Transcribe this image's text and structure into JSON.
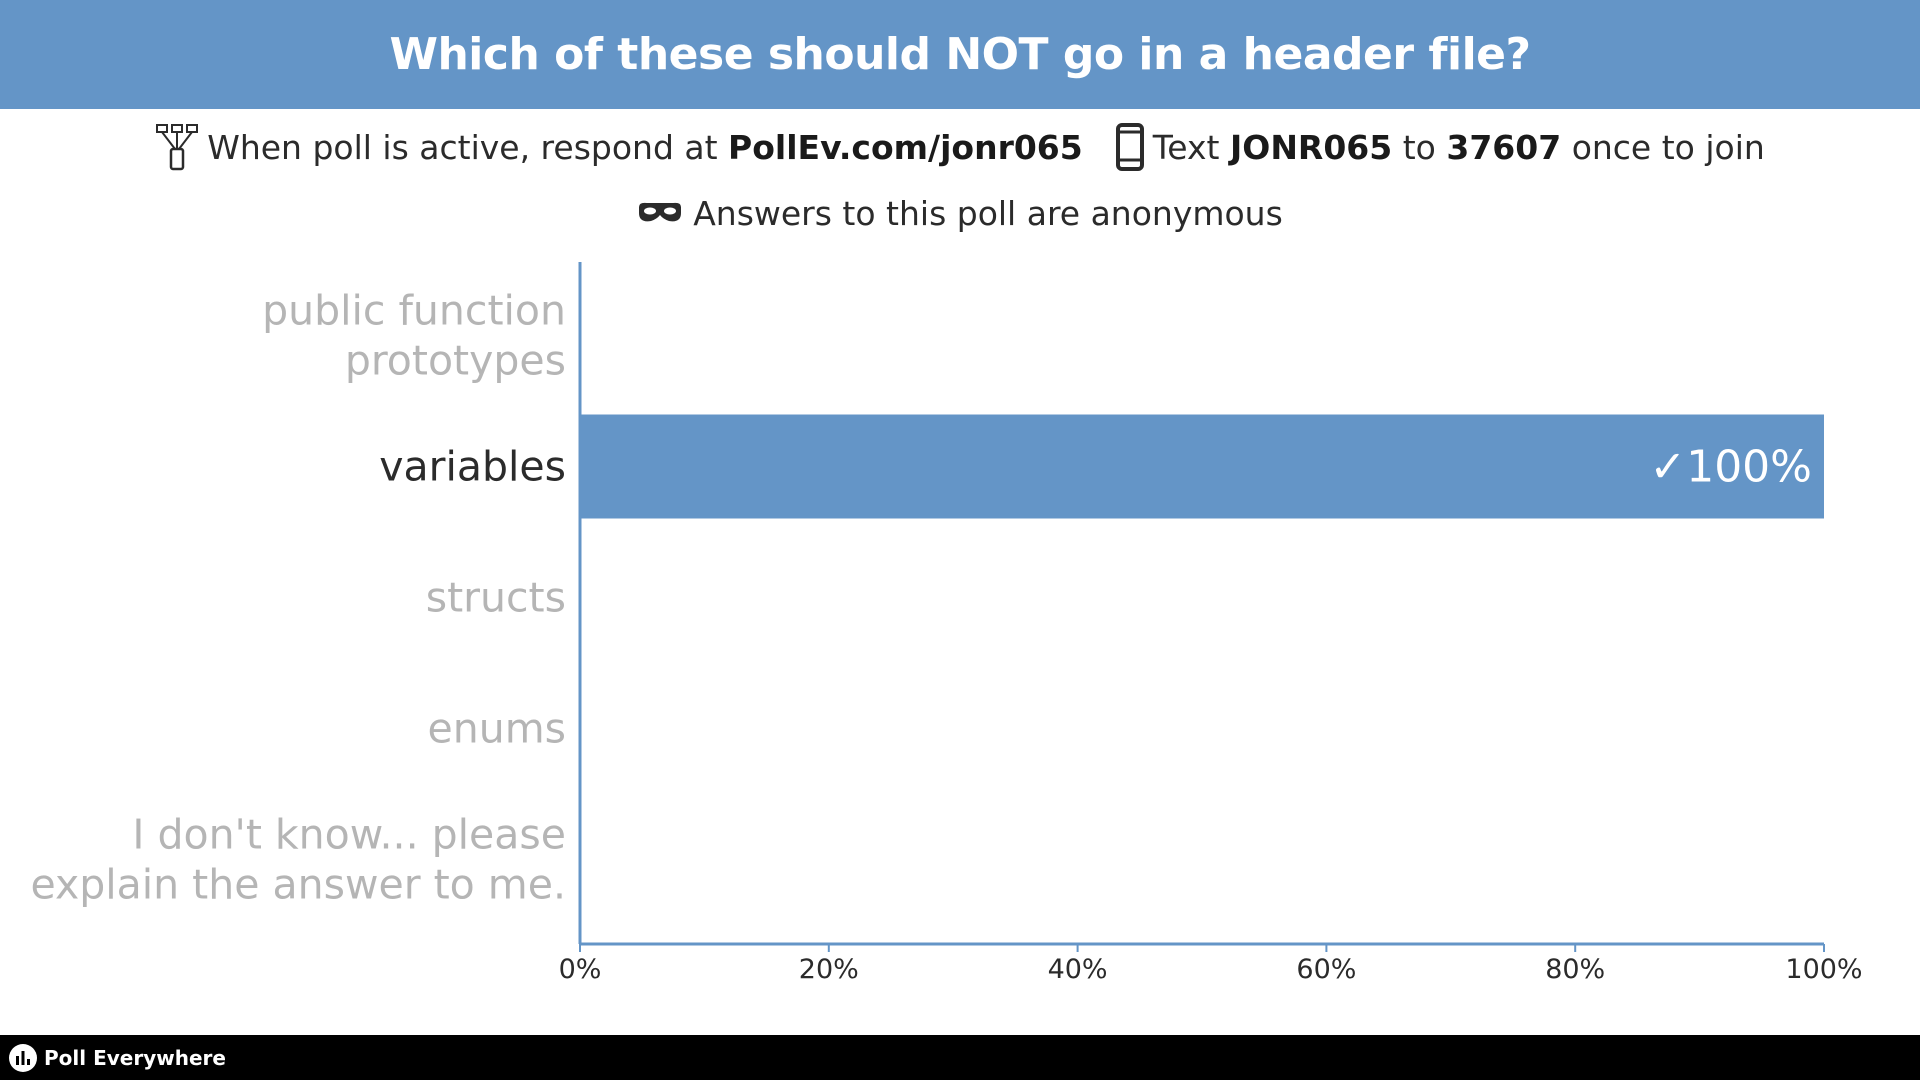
{
  "header": {
    "title": "Which of these should NOT go in a header file?",
    "background": "#6495c7"
  },
  "instructions": {
    "web_prefix": "When poll is active, respond at",
    "web_url": "PollEv.com/jonr065",
    "sms_prefix": "Text",
    "sms_code": "JONR065",
    "sms_to": "to",
    "sms_number": "37607",
    "sms_suffix": "once to join",
    "web_icon": "network-icon",
    "sms_icon": "phone-icon"
  },
  "anonymity": {
    "text": "Answers to this poll are anonymous",
    "icon": "mask-icon"
  },
  "chart_data": {
    "type": "bar",
    "orientation": "horizontal",
    "categories": [
      [
        "public function",
        "prototypes"
      ],
      [
        "variables"
      ],
      [
        "structs"
      ],
      [
        "enums"
      ],
      [
        "I don't know... please",
        "explain the answer to me."
      ]
    ],
    "values": [
      0,
      100,
      0,
      0,
      0
    ],
    "correct": [
      false,
      true,
      false,
      false,
      false
    ],
    "value_labels": [
      "",
      "✓100%",
      "",
      "",
      ""
    ],
    "xlim": [
      0,
      100
    ],
    "xticks": [
      "0%",
      "20%",
      "40%",
      "60%",
      "80%",
      "100%"
    ],
    "bar_color": "#6495c7",
    "axis_color": "#6495c7",
    "label_color_correct": "#2b2b2b",
    "label_color_other": "#b5b5b5",
    "grid": false
  },
  "footer": {
    "brand": "Poll Everywhere",
    "logo_icon": "poll-everywhere-logo-icon"
  }
}
